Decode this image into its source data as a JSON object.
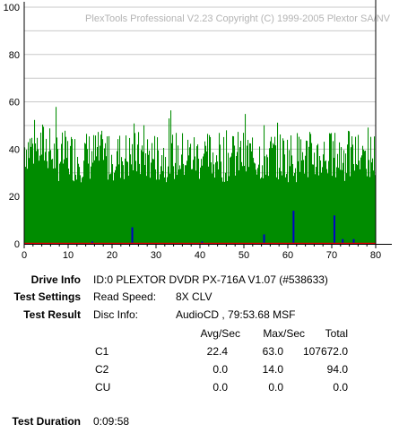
{
  "watermark": "PlexTools Professional V2.23 Copyright (C) 1999-2005 Plextor SA/NV",
  "colors": {
    "c1": "#008c00",
    "c2": "#0000c8",
    "cu": "#e00000",
    "grid": "#c8c8c8"
  },
  "chart_data": {
    "type": "bar",
    "title": "",
    "xlabel": "",
    "ylabel": "",
    "xlim": [
      0,
      80
    ],
    "ylim": [
      0,
      100
    ],
    "x_ticks": [
      "0",
      "10",
      "20",
      "30",
      "40",
      "50",
      "60",
      "70",
      "80"
    ],
    "y_ticks": [
      "0",
      "20",
      "40",
      "60",
      "80",
      "100"
    ],
    "grid": true,
    "series": [
      {
        "name": "C1",
        "baseline": 40,
        "range": [
          13,
          63
        ],
        "color": "#008c00"
      },
      {
        "name": "C2",
        "points": [
          [
            15.5,
            1
          ],
          [
            24.6,
            7
          ],
          [
            40.5,
            1
          ],
          [
            54.6,
            4
          ],
          [
            61.3,
            14
          ],
          [
            70.6,
            12
          ],
          [
            72.5,
            2
          ],
          [
            75,
            2
          ]
        ],
        "color": "#0000c8"
      },
      {
        "name": "CU",
        "values": [
          0
        ],
        "color": "#e00000"
      }
    ]
  },
  "info": {
    "drive_label": "Drive Info",
    "drive_value": "ID:0 PLEXTOR DVDR PX-716A V1.07 (#538633)",
    "settings_label": "Test Settings",
    "read_speed_label": "Read Speed:",
    "read_speed_value": "8X CLV",
    "result_label": "Test Result",
    "disc_info_label": "Disc Info:",
    "disc_info_value": "AudioCD , 79:53.68 MSF",
    "table_headers": [
      "Avg/Sec",
      "Max/Sec",
      "Total"
    ],
    "rows": [
      {
        "name": "C1",
        "avg": "22.4",
        "max": "63.0",
        "total": "107672.0"
      },
      {
        "name": "C2",
        "avg": "0.0",
        "max": "14.0",
        "total": "94.0"
      },
      {
        "name": "CU",
        "avg": "0.0",
        "max": "0.0",
        "total": "0.0"
      }
    ],
    "duration_label": "Test Duration",
    "duration_value": "0:09:58"
  }
}
